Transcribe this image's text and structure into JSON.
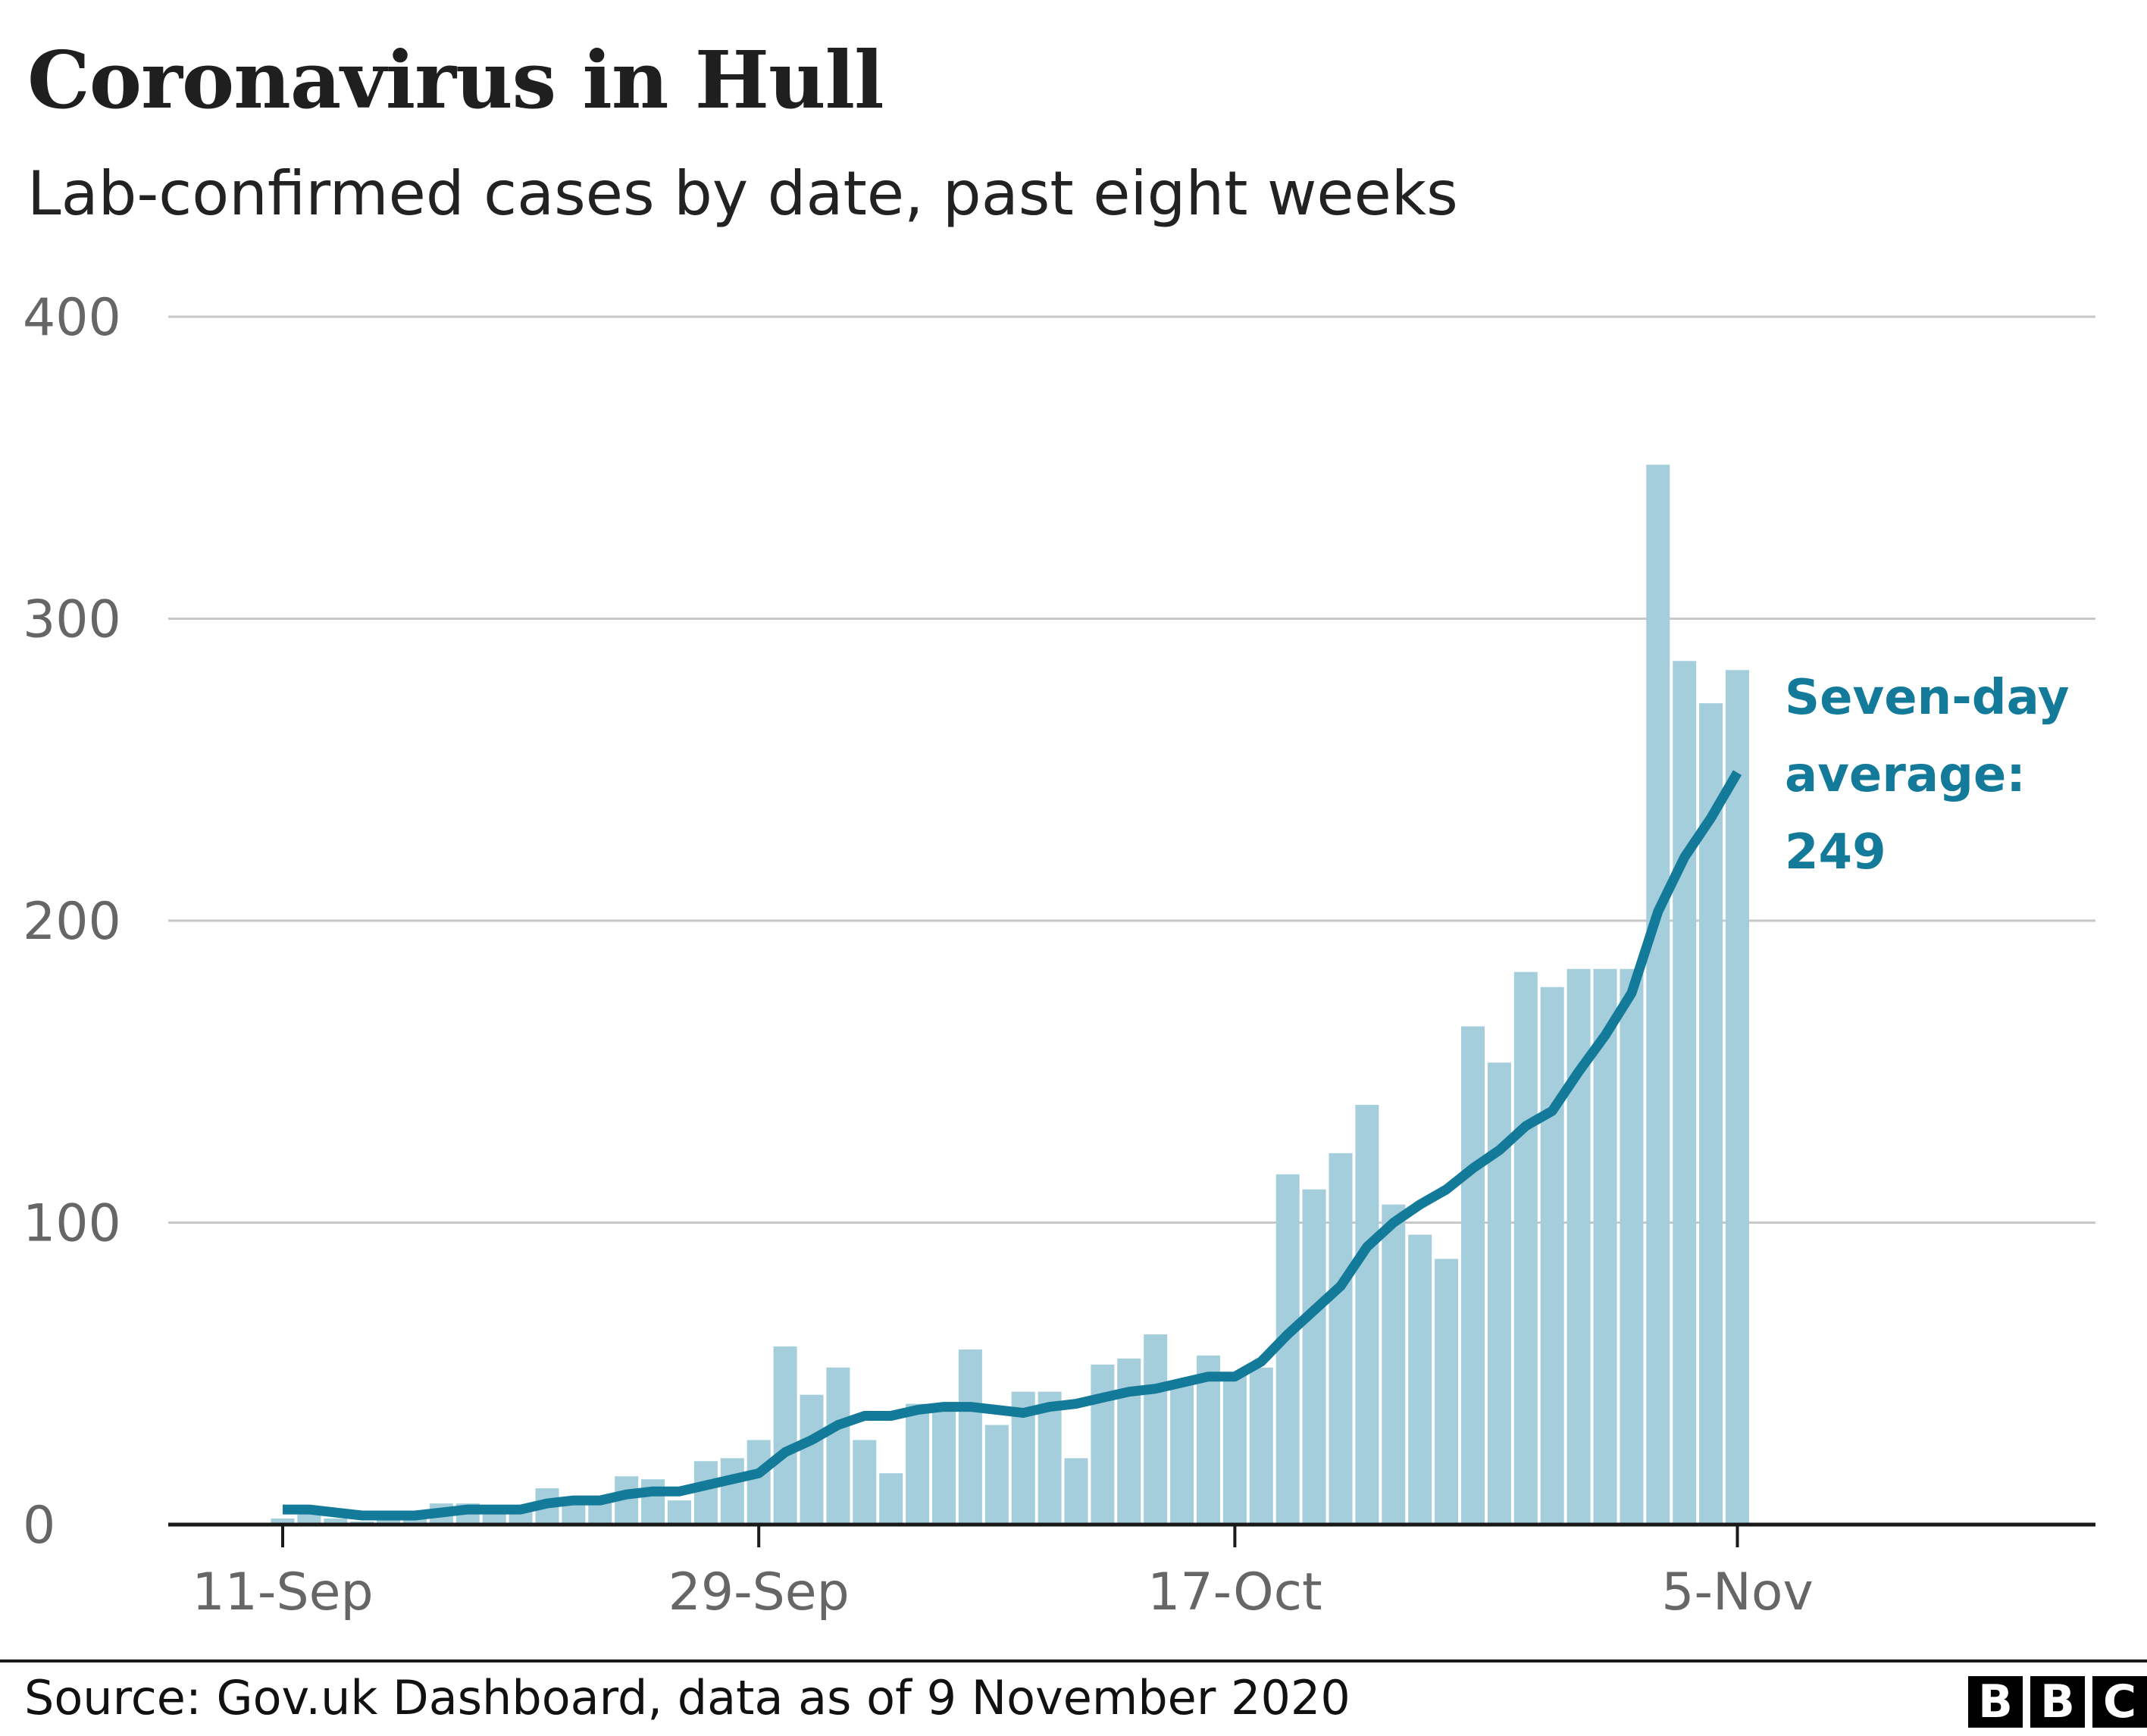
{
  "title": "Coronavirus in Hull",
  "subtitle": "Lab-confirmed cases by date, past eight weeks",
  "source": "Source: Gov.uk Dashboard, data as of 9 November 2020",
  "logo": [
    "B",
    "B",
    "C"
  ],
  "colors": {
    "bars": "#a4cedb",
    "average_line": "#137a9a",
    "annotation": "#137a9a",
    "grid": "#c8c8c8",
    "axis": "#1a1a1a",
    "tick_label": "#666666"
  },
  "chart_data": {
    "type": "bar",
    "title": "Coronavirus in Hull",
    "subtitle": "Lab-confirmed cases by date, past eight weeks",
    "xlabel": "",
    "ylabel": "",
    "ylim": [
      0,
      400
    ],
    "yticks": [
      0,
      100,
      200,
      300,
      400
    ],
    "grid": true,
    "x_tick_labels": [
      {
        "label": "11-Sep",
        "date": "2020-09-11"
      },
      {
        "label": "29-Sep",
        "date": "2020-09-29"
      },
      {
        "label": "17-Oct",
        "date": "2020-10-17"
      },
      {
        "label": "5-Nov",
        "date": "2020-11-05"
      }
    ],
    "dates": [
      "2020-09-11",
      "2020-09-12",
      "2020-09-13",
      "2020-09-14",
      "2020-09-15",
      "2020-09-16",
      "2020-09-17",
      "2020-09-18",
      "2020-09-19",
      "2020-09-20",
      "2020-09-21",
      "2020-09-22",
      "2020-09-23",
      "2020-09-24",
      "2020-09-25",
      "2020-09-26",
      "2020-09-27",
      "2020-09-28",
      "2020-09-29",
      "2020-09-30",
      "2020-10-01",
      "2020-10-02",
      "2020-10-03",
      "2020-10-04",
      "2020-10-05",
      "2020-10-06",
      "2020-10-07",
      "2020-10-08",
      "2020-10-09",
      "2020-10-10",
      "2020-10-11",
      "2020-10-12",
      "2020-10-13",
      "2020-10-14",
      "2020-10-15",
      "2020-10-16",
      "2020-10-17",
      "2020-10-18",
      "2020-10-19",
      "2020-10-20",
      "2020-10-21",
      "2020-10-22",
      "2020-10-23",
      "2020-10-24",
      "2020-10-25",
      "2020-10-26",
      "2020-10-27",
      "2020-10-28",
      "2020-10-29",
      "2020-10-30",
      "2020-10-31",
      "2020-11-01",
      "2020-11-02",
      "2020-11-03",
      "2020-11-04",
      "2020-11-05"
    ],
    "series": [
      {
        "type": "bar",
        "values": [
          2,
          5,
          2,
          1,
          3,
          3,
          7,
          7,
          4,
          5,
          12,
          8,
          8,
          16,
          15,
          8,
          21,
          22,
          28,
          59,
          43,
          52,
          28,
          17,
          40,
          40,
          58,
          33,
          44,
          44,
          22,
          53,
          55,
          63,
          47,
          56,
          50,
          52,
          116,
          111,
          123,
          139,
          106,
          96,
          88,
          165,
          153,
          183,
          178,
          184,
          184,
          184,
          351,
          286,
          272,
          283
        ]
      },
      {
        "type": "line",
        "values": [
          5,
          5,
          4,
          3,
          3,
          3,
          4,
          5,
          5,
          5,
          7,
          8,
          8,
          10,
          11,
          11,
          13,
          15,
          17,
          24,
          28,
          33,
          36,
          36,
          38,
          39,
          39,
          38,
          37,
          39,
          40,
          42,
          44,
          45,
          47,
          49,
          49,
          54,
          63,
          71,
          79,
          92,
          100,
          106,
          111,
          118,
          124,
          132,
          137,
          150,
          162,
          176,
          203,
          221,
          234,
          249
        ]
      }
    ],
    "annotation": {
      "lines": [
        "Seven-day",
        "average:",
        "249"
      ],
      "value": 249
    }
  }
}
